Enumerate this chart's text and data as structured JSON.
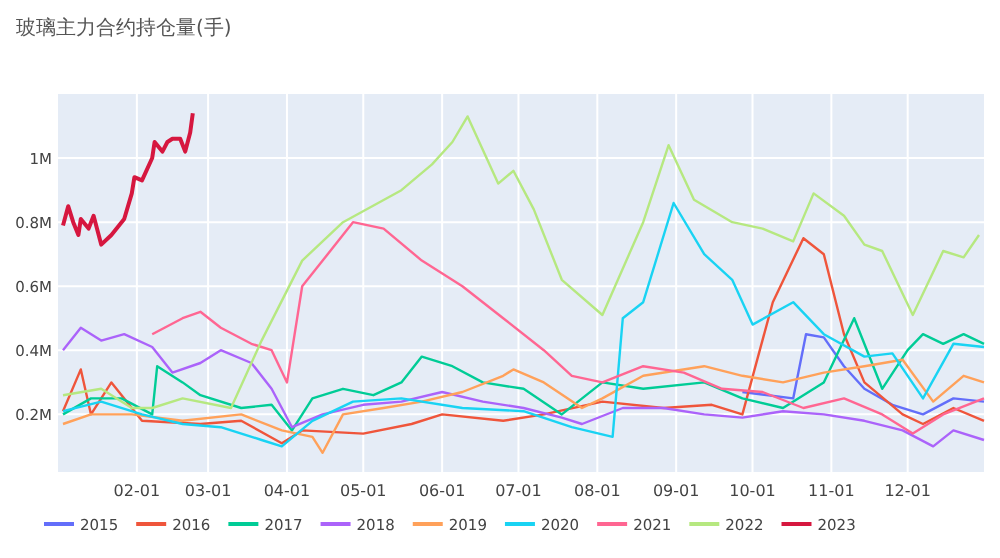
{
  "chart_data": {
    "type": "line",
    "title": "玻璃主力合约持仓量(手)",
    "legend": "bottom",
    "grid": true,
    "xlim": [
      "--01-01",
      "--12-31"
    ],
    "xticks": [
      {
        "value": "--02-01",
        "label": "02-01"
      },
      {
        "value": "--03-01",
        "label": "03-01"
      },
      {
        "value": "--04-01",
        "label": "04-01"
      },
      {
        "value": "--05-01",
        "label": "05-01"
      },
      {
        "value": "--06-01",
        "label": "06-01"
      },
      {
        "value": "--07-01",
        "label": "07-01"
      },
      {
        "value": "--08-01",
        "label": "08-01"
      },
      {
        "value": "--09-01",
        "label": "09-01"
      },
      {
        "value": "--10-01",
        "label": "10-01"
      },
      {
        "value": "--11-01",
        "label": "11-01"
      },
      {
        "value": "--12-01",
        "label": "12-01"
      }
    ],
    "ylim": [
      20000,
      1200000
    ],
    "yticks": [
      {
        "value": 200000,
        "label": "0.2M"
      },
      {
        "value": 400000,
        "label": "0.4M"
      },
      {
        "value": 600000,
        "label": "0.6M"
      },
      {
        "value": 800000,
        "label": "0.8M"
      },
      {
        "value": 1000000,
        "label": "1M"
      }
    ],
    "series": [
      {
        "name": "2015",
        "color": "#636efa",
        "x": [
          "--09-27",
          "--10-17",
          "--10-22",
          "--10-29",
          "--11-06",
          "--11-14",
          "--11-25",
          "--12-07",
          "--12-19",
          "--12-31"
        ],
        "values": [
          270000,
          250000,
          450000,
          440000,
          350000,
          280000,
          230000,
          200000,
          250000,
          240000
        ]
      },
      {
        "name": "2016",
        "color": "#ef553b",
        "x": [
          "--01-03",
          "--01-10",
          "--01-14",
          "--01-22",
          "--02-03",
          "--02-26",
          "--03-14",
          "--03-30",
          "--04-07",
          "--05-01",
          "--05-20",
          "--06-01",
          "--06-25",
          "--07-11",
          "--08-03",
          "--08-27",
          "--09-15",
          "--09-27",
          "--10-09",
          "--10-21",
          "--10-29",
          "--11-06",
          "--11-14",
          "--11-29",
          "--12-07",
          "--12-19",
          "--12-31"
        ],
        "values": [
          210000,
          340000,
          200000,
          300000,
          180000,
          170000,
          180000,
          110000,
          150000,
          140000,
          170000,
          200000,
          180000,
          200000,
          240000,
          220000,
          230000,
          200000,
          550000,
          750000,
          700000,
          450000,
          300000,
          200000,
          170000,
          220000,
          180000
        ]
      },
      {
        "name": "2017",
        "color": "#00cc96",
        "x": [
          "--01-03",
          "--01-14",
          "--01-26",
          "--02-07",
          "--02-09",
          "--02-19",
          "--02-26",
          "--03-14",
          "--03-26",
          "--04-03",
          "--04-11",
          "--04-23",
          "--05-05",
          "--05-16",
          "--05-24",
          "--06-05",
          "--06-17",
          "--07-03",
          "--07-18",
          "--08-03",
          "--08-19",
          "--09-12",
          "--09-27",
          "--10-13",
          "--10-29",
          "--11-10",
          "--11-21",
          "--12-01",
          "--12-07",
          "--12-15",
          "--12-23",
          "--12-31"
        ],
        "values": [
          200000,
          250000,
          250000,
          200000,
          350000,
          300000,
          260000,
          220000,
          230000,
          150000,
          250000,
          280000,
          260000,
          300000,
          380000,
          350000,
          300000,
          280000,
          200000,
          300000,
          280000,
          300000,
          250000,
          220000,
          300000,
          500000,
          280000,
          400000,
          450000,
          420000,
          450000,
          420000
        ]
      },
      {
        "name": "2018",
        "color": "#ab63fa",
        "x": [
          "--01-03",
          "--01-10",
          "--01-18",
          "--01-27",
          "--02-07",
          "--02-15",
          "--02-26",
          "--03-06",
          "--03-18",
          "--03-26",
          "--04-03",
          "--04-15",
          "--05-01",
          "--05-16",
          "--06-01",
          "--06-17",
          "--07-03",
          "--07-18",
          "--07-26",
          "--08-11",
          "--08-27",
          "--09-12",
          "--09-27",
          "--10-13",
          "--10-29",
          "--11-14",
          "--11-29",
          "--12-11",
          "--12-19",
          "--12-31"
        ],
        "values": [
          400000,
          470000,
          430000,
          450000,
          410000,
          330000,
          360000,
          400000,
          360000,
          280000,
          160000,
          200000,
          230000,
          240000,
          270000,
          240000,
          220000,
          190000,
          170000,
          220000,
          220000,
          200000,
          190000,
          210000,
          200000,
          180000,
          150000,
          100000,
          150000,
          120000
        ]
      },
      {
        "name": "2019",
        "color": "#ffa15a",
        "x": [
          "--01-03",
          "--01-14",
          "--01-30",
          "--02-19",
          "--03-14",
          "--03-30",
          "--04-11",
          "--04-15",
          "--04-23",
          "--05-09",
          "--05-24",
          "--06-09",
          "--06-25",
          "--06-29",
          "--07-11",
          "--07-26",
          "--08-03",
          "--08-19",
          "--09-12",
          "--09-27",
          "--10-13",
          "--10-29",
          "--11-14",
          "--11-29",
          "--12-11",
          "--12-23",
          "--12-31"
        ],
        "values": [
          170000,
          200000,
          200000,
          180000,
          200000,
          150000,
          130000,
          80000,
          200000,
          220000,
          240000,
          270000,
          320000,
          340000,
          300000,
          220000,
          250000,
          320000,
          350000,
          320000,
          300000,
          330000,
          350000,
          370000,
          240000,
          320000,
          300000
        ]
      },
      {
        "name": "2020",
        "color": "#19d3f3",
        "x": [
          "--01-03",
          "--01-18",
          "--02-03",
          "--02-19",
          "--03-06",
          "--03-22",
          "--03-30",
          "--04-11",
          "--04-27",
          "--05-16",
          "--06-09",
          "--07-03",
          "--07-22",
          "--08-07",
          "--08-11",
          "--08-19",
          "--08-31",
          "--09-12",
          "--09-23",
          "--10-01",
          "--10-17",
          "--10-29",
          "--11-14",
          "--11-25",
          "--12-07",
          "--12-19",
          "--12-31"
        ],
        "values": [
          210000,
          240000,
          200000,
          170000,
          160000,
          120000,
          100000,
          180000,
          240000,
          250000,
          220000,
          210000,
          160000,
          130000,
          500000,
          550000,
          860000,
          700000,
          620000,
          480000,
          550000,
          450000,
          380000,
          390000,
          250000,
          420000,
          410000
        ]
      },
      {
        "name": "2021",
        "color": "#ff6692",
        "x": [
          "--02-07",
          "--02-19",
          "--02-26",
          "--03-06",
          "--03-18",
          "--03-26",
          "--04-01",
          "--04-07",
          "--04-19",
          "--04-27",
          "--05-09",
          "--05-24",
          "--06-09",
          "--06-25",
          "--07-11",
          "--07-22",
          "--08-03",
          "--08-19",
          "--09-04",
          "--09-19",
          "--10-05",
          "--10-21",
          "--11-06",
          "--11-21",
          "--12-03",
          "--12-15",
          "--12-31"
        ],
        "values": [
          450000,
          500000,
          520000,
          470000,
          420000,
          400000,
          300000,
          600000,
          720000,
          800000,
          780000,
          680000,
          600000,
          500000,
          400000,
          320000,
          300000,
          350000,
          330000,
          280000,
          270000,
          220000,
          250000,
          200000,
          140000,
          200000,
          250000
        ]
      },
      {
        "name": "2022",
        "color": "#b6e880",
        "x": [
          "--01-03",
          "--01-18",
          "--01-30",
          "--02-07",
          "--02-19",
          "--03-10",
          "--03-22",
          "--04-07",
          "--04-23",
          "--05-16",
          "--05-28",
          "--06-05",
          "--06-11",
          "--06-23",
          "--06-29",
          "--07-07",
          "--07-18",
          "--08-03",
          "--08-19",
          "--08-29",
          "--09-08",
          "--09-23",
          "--10-05",
          "--10-17",
          "--10-25",
          "--11-06",
          "--11-14",
          "--11-21",
          "--12-03",
          "--12-15",
          "--12-23",
          "--12-29"
        ],
        "values": [
          260000,
          280000,
          220000,
          220000,
          250000,
          220000,
          430000,
          680000,
          800000,
          900000,
          980000,
          1050000,
          1130000,
          920000,
          960000,
          840000,
          620000,
          510000,
          800000,
          1040000,
          870000,
          800000,
          780000,
          740000,
          890000,
          820000,
          730000,
          710000,
          510000,
          710000,
          690000,
          760000
        ]
      },
      {
        "name": "2023",
        "color": "#d6173f",
        "x": [
          "--01-03",
          "--01-05",
          "--01-07",
          "--01-09",
          "--01-10",
          "--01-13",
          "--01-15",
          "--01-18",
          "--01-22",
          "--01-27",
          "--01-30",
          "--01-31",
          "--02-03",
          "--02-07",
          "--02-08",
          "--02-11",
          "--02-13",
          "--02-15",
          "--02-18",
          "--02-20",
          "--02-22",
          "--02-23"
        ],
        "values": [
          790000,
          850000,
          800000,
          760000,
          810000,
          780000,
          820000,
          730000,
          760000,
          810000,
          890000,
          940000,
          930000,
          1000000,
          1050000,
          1020000,
          1050000,
          1060000,
          1060000,
          1020000,
          1080000,
          1140000
        ]
      }
    ]
  }
}
